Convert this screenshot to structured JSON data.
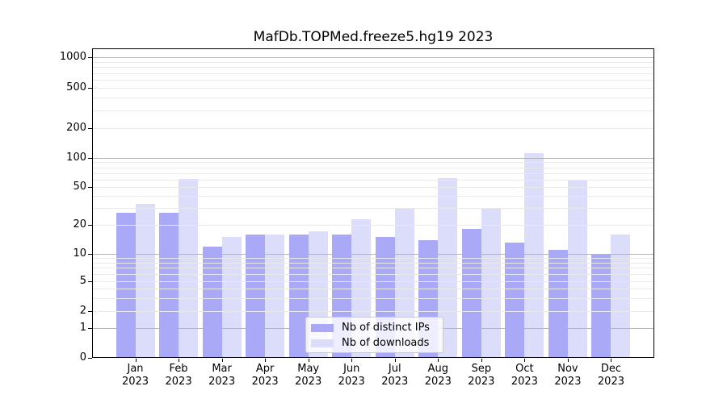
{
  "chart_data": {
    "type": "bar",
    "title": "MafDb.TOPMed.freeze5.hg19 2023",
    "categories": [
      "Jan",
      "Feb",
      "Mar",
      "Apr",
      "May",
      "Jun",
      "Jul",
      "Aug",
      "Sep",
      "Oct",
      "Nov",
      "Dec"
    ],
    "x_tick_year_line": "2023",
    "series": [
      {
        "name": "Nb of distinct IPs",
        "color": "#a9a9f8",
        "values": [
          27,
          27,
          12,
          16,
          16,
          16,
          15,
          14,
          18,
          13,
          11,
          10
        ]
      },
      {
        "name": "Nb of downloads",
        "color": "#dcdcfb",
        "values": [
          33,
          61,
          15,
          16,
          17,
          23,
          30,
          62,
          30,
          112,
          60,
          16
        ]
      }
    ],
    "y_axis": {
      "scale": "asinh-log",
      "ticks": [
        0,
        1,
        2,
        5,
        10,
        20,
        50,
        100,
        200,
        500,
        1000
      ],
      "minor_gridlines_per_decade": [
        2,
        3,
        4,
        5,
        6,
        7,
        8,
        9
      ]
    },
    "grid": true,
    "legend_position": "lower center",
    "colors": {
      "major_grid": "#b3b3b3",
      "minor_grid": "#e9e9e9",
      "axis": "#000000",
      "background": "#ffffff"
    }
  }
}
